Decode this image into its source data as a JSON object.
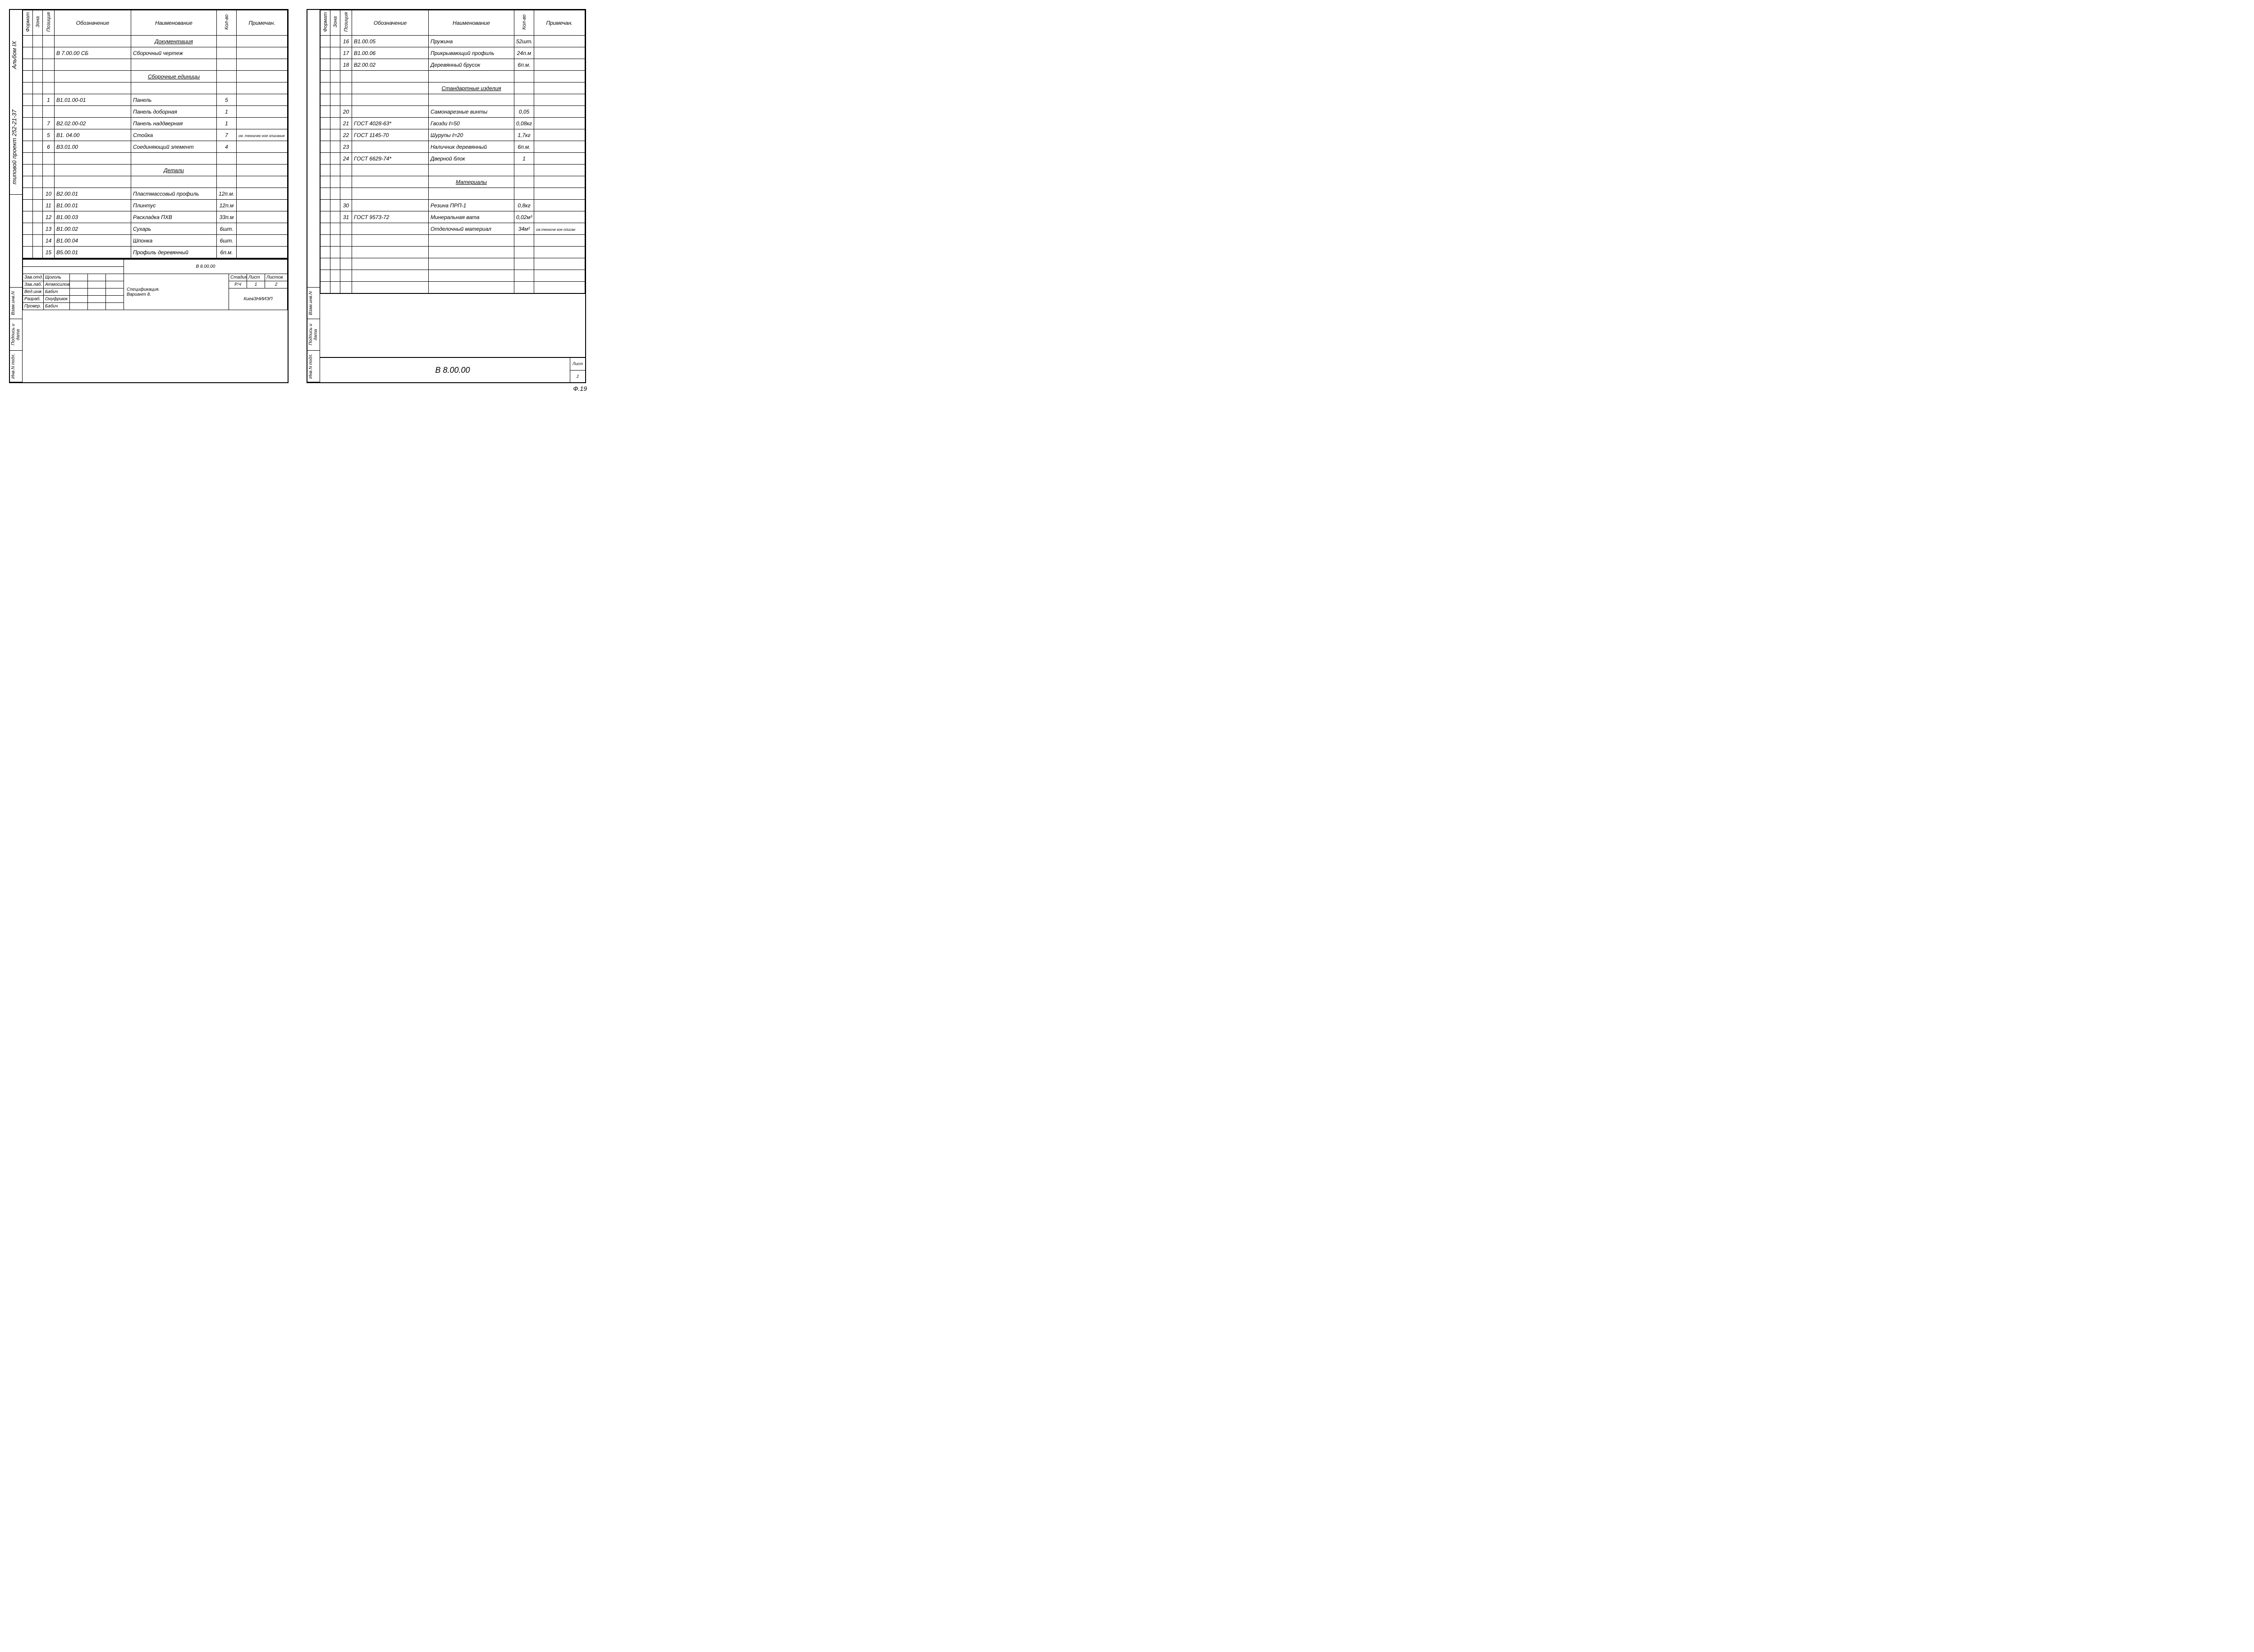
{
  "side": {
    "album": "Альбом IX",
    "project": "типовой проект 252-21-37",
    "vzam": "Взам.инв.N",
    "podpis": "Подпись и дата",
    "inv": "Инв.N подл."
  },
  "headers": {
    "format": "Формат",
    "zona": "Зона",
    "poz": "Позиция",
    "oboz": "Обозначение",
    "naim": "Наименование",
    "kol": "Кол-во",
    "prim": "Примечан."
  },
  "left_rows": [
    {
      "section": "Документация"
    },
    {
      "oboz": "В 7.00.00 СБ",
      "naim": "Сборочный чертеж"
    },
    {
      "blank": true
    },
    {
      "section": "Сборочные единицы"
    },
    {
      "blank": true
    },
    {
      "poz": "1",
      "oboz": "В1.01.00-01",
      "naim": "Панель",
      "kol": "5"
    },
    {
      "naim": "Панель доборная",
      "kol": "1"
    },
    {
      "poz": "7",
      "oboz": "В2.02.00-02",
      "naim": "Панель наддверная",
      "kol": "1"
    },
    {
      "poz": "5",
      "oboz": "В1. 04.00",
      "naim": "Стойка",
      "kol": "7",
      "prim": "см. техничес-кое описание"
    },
    {
      "poz": "6",
      "oboz": "В3.01.00",
      "naim": "Соединяющий элемент",
      "kol": "4"
    },
    {
      "blank": true
    },
    {
      "section": "Детали"
    },
    {
      "blank": true
    },
    {
      "poz": "10",
      "oboz": "В2.00.01",
      "naim": "Пластмассовый профиль",
      "kol": "12п.м."
    },
    {
      "poz": "11",
      "oboz": "В1.00.01",
      "naim": "Плинтус",
      "kol": "12п.м"
    },
    {
      "poz": "12",
      "oboz": "В1.00.03",
      "naim": "Раскладка ПХВ",
      "kol": "33п.м"
    },
    {
      "poz": "13",
      "oboz": "В1.00.02",
      "naim": "Сухарь",
      "kol": "6шт."
    },
    {
      "poz": "14",
      "oboz": "В1.00.04",
      "naim": "Шпонка",
      "kol": "6шт."
    },
    {
      "poz": "15",
      "oboz": "В5.00.01",
      "naim": "Профиль деревянный",
      "kol": "6п.м."
    }
  ],
  "right_rows": [
    {
      "poz": "16",
      "oboz": "В1.00.05",
      "naim": "Пружина",
      "kol": "52шт."
    },
    {
      "poz": "17",
      "oboz": "В1.00.06",
      "naim": "Прикрывающий профиль",
      "kol": "24п.м"
    },
    {
      "poz": "18",
      "oboz": "В2.00.02",
      "naim": "Деревянный брусок",
      "kol": "6п.м."
    },
    {
      "blank": true
    },
    {
      "section": "Стандартные изделия"
    },
    {
      "blank": true
    },
    {
      "poz": "20",
      "naim": "Самонарезные винты",
      "kol": "0,05"
    },
    {
      "poz": "21",
      "oboz": "ГОСТ 4028-63*",
      "naim": "Гвозди ℓ=50",
      "kol": "0,08кг"
    },
    {
      "poz": "22",
      "oboz": "ГОСТ 1145-70",
      "naim": "Шурупы ℓ=20",
      "kol": "1,7кг"
    },
    {
      "poz": "23",
      "naim": "Наличник деревянный",
      "kol": "6п.м."
    },
    {
      "poz": "24",
      "oboz": "ГОСТ 6629-74*",
      "naim": "Дверной блок",
      "kol": "1"
    },
    {
      "blank": true
    },
    {
      "section": "Материалы"
    },
    {
      "blank": true
    },
    {
      "poz": "30",
      "naim": "Резина ПРП-1",
      "kol": "0,8кг"
    },
    {
      "poz": "31",
      "oboz": "ГОСТ 9573-72",
      "naim": "Минеральная вата",
      "kol": "0,02м³"
    },
    {
      "naim": "Отделочный материал",
      "kol": "34м²",
      "prim": "см.техниче кое описан"
    },
    {
      "blank": true
    },
    {
      "blank": true
    },
    {
      "blank": true
    },
    {
      "blank": true
    },
    {
      "blank": true
    }
  ],
  "titleblock": {
    "docnum": "В 8.00.00",
    "title1": "Спецификация.",
    "title2": "Вариант 8.",
    "org": "КиевЗНИИЭП",
    "stadia_h": "Стадия",
    "list_h": "Лист",
    "listov_h": "Листов",
    "stadia": "Р.Ч",
    "list": "1",
    "listov": "2",
    "roles": [
      {
        "r": "Зав.отд.",
        "n": "Щоголь"
      },
      {
        "r": "Зав.лаб.",
        "n": "Атмосилова"
      },
      {
        "r": "Вед.инж",
        "n": "Бабич"
      },
      {
        "r": "Разраб.",
        "n": "Онуфриюк"
      },
      {
        "r": "Провер.",
        "n": "Бабич"
      }
    ]
  },
  "bottom": {
    "docnum": "В 8.00.00",
    "list_h": "Лист",
    "list": "2"
  },
  "page_corner": "Ф.19"
}
